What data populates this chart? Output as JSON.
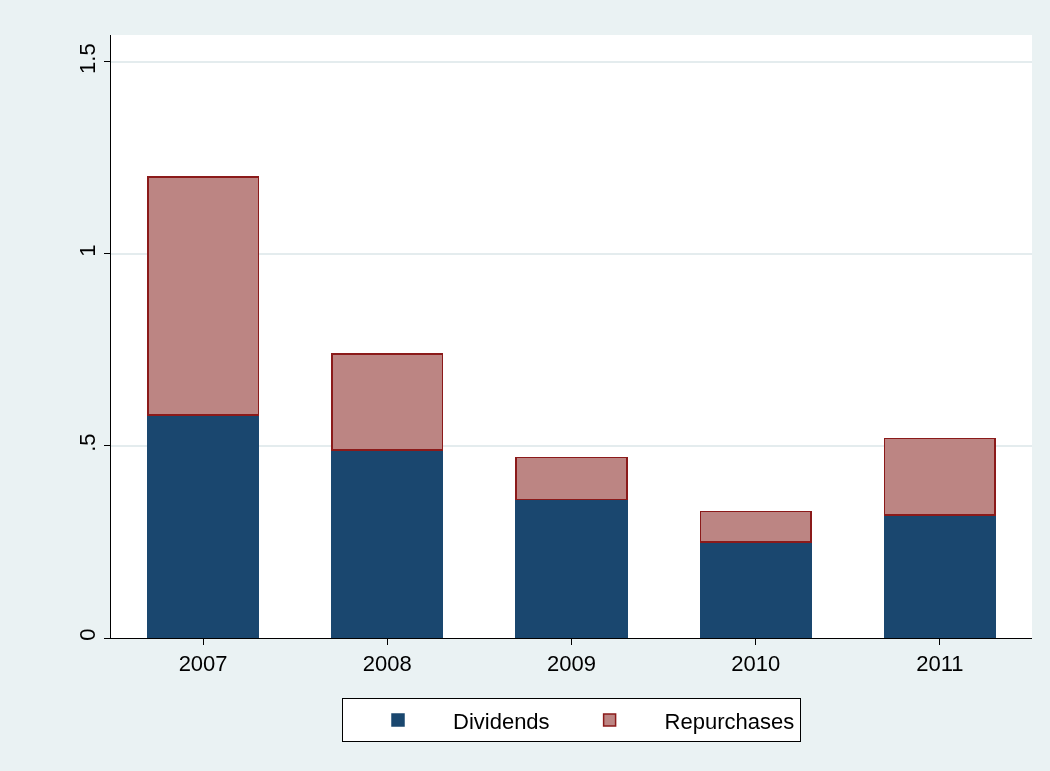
{
  "chart_data": {
    "type": "bar",
    "stacked": true,
    "categories": [
      "2007",
      "2008",
      "2009",
      "2010",
      "2011"
    ],
    "series": [
      {
        "name": "Dividends",
        "color": "#1a476f",
        "values": [
          0.58,
          0.49,
          0.36,
          0.25,
          0.32
        ]
      },
      {
        "name": "Repurchases",
        "color": "#bc8583",
        "values": [
          0.62,
          0.25,
          0.11,
          0.08,
          0.2
        ]
      }
    ],
    "ylim": [
      0,
      1.57
    ],
    "yticks": [
      0,
      {
        "value": 0.5,
        "label": ".5"
      },
      1,
      1.5
    ],
    "grid": "y",
    "legend": "bottom"
  }
}
